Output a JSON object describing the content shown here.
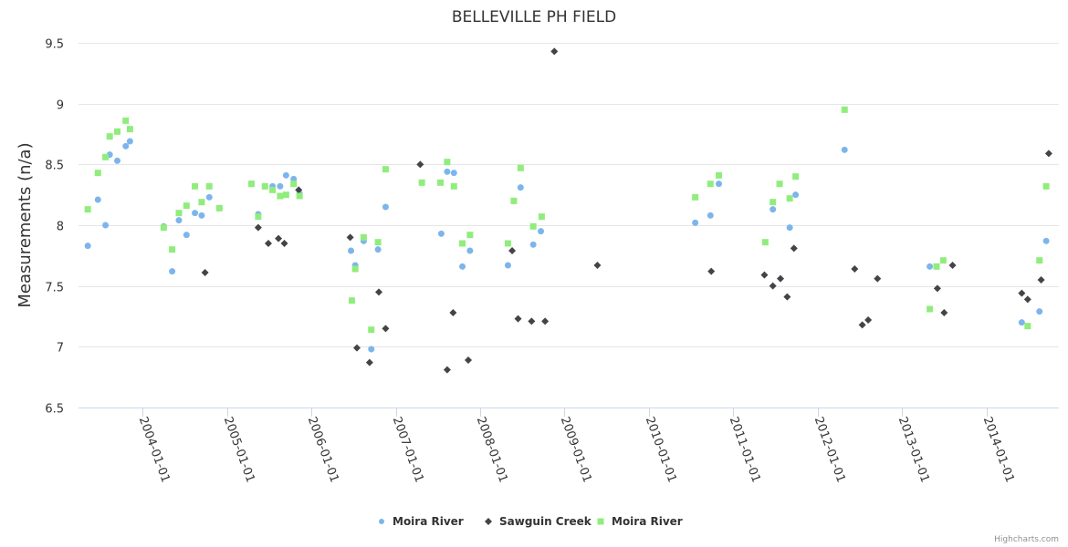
{
  "chart_data": {
    "type": "scatter",
    "title": "BELLEVILLE PH FIELD",
    "xlabel": "",
    "ylabel": "Measurements (n/a)",
    "ylim": [
      6.5,
      9.5
    ],
    "yticks": [
      6.5,
      7,
      7.5,
      8,
      8.5,
      9,
      9.5
    ],
    "ytick_labels": [
      "6.5",
      "7",
      "7.5",
      "8",
      "8.5",
      "9",
      "9.5"
    ],
    "xlim": [
      2003.24,
      2014.86
    ],
    "xticks": [
      2004,
      2005,
      2006,
      2007,
      2008,
      2009,
      2010,
      2011,
      2012,
      2013,
      2014
    ],
    "xtick_labels": [
      "2004-01-01",
      "2005-01-01",
      "2006-01-01",
      "2007-01-01",
      "2008-01-01",
      "2009-01-01",
      "2010-01-01",
      "2011-01-01",
      "2012-01-01",
      "2013-01-01",
      "2014-01-01"
    ],
    "grid": true,
    "legend_position": "bottom-center",
    "credits": "Highcharts.com",
    "series": [
      {
        "name": "Moira River",
        "marker": "circle",
        "color": "#7cb5ec",
        "points": [
          [
            2003.35,
            7.83
          ],
          [
            2003.47,
            8.21
          ],
          [
            2003.56,
            8.0
          ],
          [
            2003.61,
            8.58
          ],
          [
            2003.7,
            8.53
          ],
          [
            2003.8,
            8.65
          ],
          [
            2003.85,
            8.69
          ],
          [
            2004.25,
            7.99
          ],
          [
            2004.35,
            7.62
          ],
          [
            2004.43,
            8.04
          ],
          [
            2004.52,
            7.92
          ],
          [
            2004.62,
            8.1
          ],
          [
            2004.7,
            8.08
          ],
          [
            2004.79,
            8.23
          ],
          [
            2004.91,
            8.14
          ],
          [
            2005.29,
            8.34
          ],
          [
            2005.37,
            8.09
          ],
          [
            2005.45,
            8.32
          ],
          [
            2005.54,
            8.32
          ],
          [
            2005.63,
            8.32
          ],
          [
            2005.7,
            8.41
          ],
          [
            2005.79,
            8.38
          ],
          [
            2005.86,
            8.26
          ],
          [
            2006.47,
            7.79
          ],
          [
            2006.52,
            7.67
          ],
          [
            2006.62,
            7.87
          ],
          [
            2006.79,
            7.8
          ],
          [
            2006.71,
            6.98
          ],
          [
            2006.88,
            8.15
          ],
          [
            2007.54,
            7.93
          ],
          [
            2007.61,
            8.44
          ],
          [
            2007.69,
            8.43
          ],
          [
            2007.79,
            7.66
          ],
          [
            2007.88,
            7.79
          ],
          [
            2008.33,
            7.67
          ],
          [
            2008.4,
            8.2
          ],
          [
            2008.48,
            8.31
          ],
          [
            2008.63,
            7.84
          ],
          [
            2008.72,
            7.95
          ],
          [
            2010.55,
            8.02
          ],
          [
            2010.73,
            8.08
          ],
          [
            2010.83,
            8.34
          ],
          [
            2011.47,
            8.13
          ],
          [
            2011.67,
            7.98
          ],
          [
            2011.74,
            8.25
          ],
          [
            2012.32,
            8.62
          ],
          [
            2013.33,
            7.66
          ],
          [
            2014.42,
            7.2
          ],
          [
            2014.63,
            7.29
          ],
          [
            2014.71,
            7.87
          ]
        ]
      },
      {
        "name": "Sawguin Creek",
        "marker": "diamond",
        "color": "#434348",
        "points": [
          [
            2004.74,
            7.61
          ],
          [
            2005.37,
            7.98
          ],
          [
            2005.49,
            7.85
          ],
          [
            2005.61,
            7.89
          ],
          [
            2005.68,
            7.85
          ],
          [
            2005.85,
            8.29
          ],
          [
            2006.46,
            7.9
          ],
          [
            2006.54,
            6.99
          ],
          [
            2006.69,
            6.87
          ],
          [
            2006.8,
            7.45
          ],
          [
            2006.88,
            7.15
          ],
          [
            2007.29,
            8.5
          ],
          [
            2007.61,
            6.81
          ],
          [
            2007.68,
            7.28
          ],
          [
            2007.86,
            6.89
          ],
          [
            2008.38,
            7.79
          ],
          [
            2008.45,
            7.23
          ],
          [
            2008.61,
            7.21
          ],
          [
            2008.77,
            7.21
          ],
          [
            2008.88,
            9.43
          ],
          [
            2009.39,
            7.67
          ],
          [
            2010.74,
            7.62
          ],
          [
            2011.37,
            7.59
          ],
          [
            2011.47,
            7.5
          ],
          [
            2011.56,
            7.56
          ],
          [
            2011.64,
            7.41
          ],
          [
            2011.72,
            7.81
          ],
          [
            2012.44,
            7.64
          ],
          [
            2012.53,
            7.18
          ],
          [
            2012.6,
            7.22
          ],
          [
            2012.71,
            7.56
          ],
          [
            2013.42,
            7.48
          ],
          [
            2013.5,
            7.28
          ],
          [
            2013.6,
            7.67
          ],
          [
            2014.42,
            7.44
          ],
          [
            2014.49,
            7.39
          ],
          [
            2014.65,
            7.55
          ],
          [
            2014.74,
            8.59
          ]
        ]
      },
      {
        "name": "Moira River",
        "marker": "square",
        "color": "#90ed7d",
        "points": [
          [
            2003.35,
            8.13
          ],
          [
            2003.47,
            8.43
          ],
          [
            2003.56,
            8.56
          ],
          [
            2003.61,
            8.73
          ],
          [
            2003.7,
            8.77
          ],
          [
            2003.8,
            8.86
          ],
          [
            2003.85,
            8.79
          ],
          [
            2004.25,
            7.98
          ],
          [
            2004.35,
            7.8
          ],
          [
            2004.43,
            8.1
          ],
          [
            2004.52,
            8.16
          ],
          [
            2004.62,
            8.32
          ],
          [
            2004.7,
            8.19
          ],
          [
            2004.79,
            8.32
          ],
          [
            2004.91,
            8.14
          ],
          [
            2005.29,
            8.34
          ],
          [
            2005.37,
            8.07
          ],
          [
            2005.45,
            8.32
          ],
          [
            2005.54,
            8.29
          ],
          [
            2005.63,
            8.24
          ],
          [
            2005.7,
            8.25
          ],
          [
            2005.79,
            8.34
          ],
          [
            2005.86,
            8.24
          ],
          [
            2006.48,
            7.38
          ],
          [
            2006.52,
            7.64
          ],
          [
            2006.62,
            7.9
          ],
          [
            2006.79,
            7.86
          ],
          [
            2006.71,
            7.14
          ],
          [
            2006.88,
            8.46
          ],
          [
            2007.31,
            8.35
          ],
          [
            2007.53,
            8.35
          ],
          [
            2007.61,
            8.52
          ],
          [
            2007.69,
            8.32
          ],
          [
            2007.79,
            7.85
          ],
          [
            2007.88,
            7.92
          ],
          [
            2008.33,
            7.85
          ],
          [
            2008.4,
            8.2
          ],
          [
            2008.48,
            8.47
          ],
          [
            2008.63,
            7.99
          ],
          [
            2008.73,
            8.07
          ],
          [
            2010.55,
            8.23
          ],
          [
            2010.73,
            8.34
          ],
          [
            2010.83,
            8.41
          ],
          [
            2011.38,
            7.86
          ],
          [
            2011.47,
            8.19
          ],
          [
            2011.55,
            8.34
          ],
          [
            2011.67,
            8.22
          ],
          [
            2011.74,
            8.4
          ],
          [
            2012.32,
            8.95
          ],
          [
            2013.33,
            7.31
          ],
          [
            2013.41,
            7.66
          ],
          [
            2013.49,
            7.71
          ],
          [
            2014.49,
            7.17
          ],
          [
            2014.63,
            7.71
          ],
          [
            2014.71,
            8.32
          ]
        ]
      }
    ]
  }
}
